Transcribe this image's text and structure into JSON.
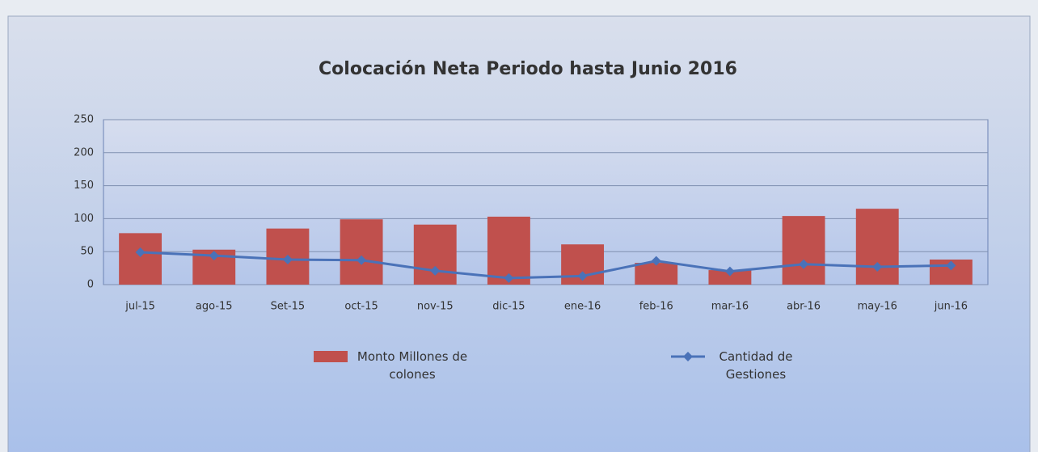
{
  "chart_data": {
    "type": "bar_line",
    "title": "Colocación Neta  Periodo hasta Junio 2016",
    "categories": [
      "jul-15",
      "ago-15",
      "Set-15",
      "oct-15",
      "nov-15",
      "dic-15",
      "ene-16",
      "feb-16",
      "mar-16",
      "abr-16",
      "may-16",
      "jun-16"
    ],
    "series": [
      {
        "name": "Monto Millones de colones",
        "type": "bar",
        "color": "#c0504d",
        "values": [
          78,
          53,
          85,
          99,
          91,
          103,
          61,
          33,
          22,
          104,
          115,
          38
        ]
      },
      {
        "name": "Cantidad de Gestiones",
        "type": "line",
        "color": "#4a72b8",
        "values": [
          49,
          44,
          38,
          37,
          21,
          10,
          13,
          36,
          20,
          31,
          27,
          29
        ]
      }
    ],
    "ylim": [
      0,
      250
    ],
    "yticks": [
      0,
      50,
      100,
      150,
      200,
      250
    ],
    "grid": true,
    "legend": "bottom"
  }
}
